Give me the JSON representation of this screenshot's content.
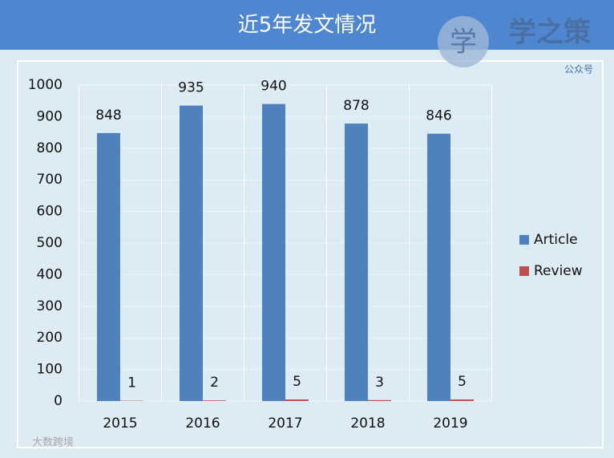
{
  "chart_data": {
    "type": "bar",
    "title": "近5年发文情况",
    "logo_icon": "学",
    "logo_text": "学之策",
    "logo_subtext": "公众号",
    "watermark": "大数跨境",
    "categories": [
      "2015",
      "2016",
      "2017",
      "2018",
      "2019"
    ],
    "series": [
      {
        "name": "Article",
        "color": "#4f81bd",
        "values": [
          848,
          935,
          940,
          878,
          846
        ]
      },
      {
        "name": "Review",
        "color": "#c0504d",
        "values": [
          1,
          2,
          5,
          3,
          5
        ]
      }
    ],
    "ylim": [
      0,
      1000
    ],
    "yticks": [
      0,
      100,
      200,
      300,
      400,
      500,
      600,
      700,
      800,
      900,
      1000
    ],
    "grid": true,
    "legend": "right"
  }
}
